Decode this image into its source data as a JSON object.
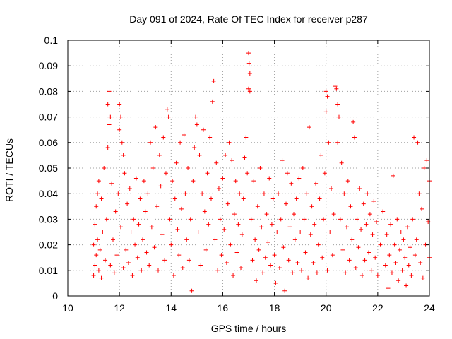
{
  "chart_data": {
    "type": "scatter",
    "title": "Day 091 of 2024, Rate Of TEC Index for receiver p287",
    "xlabel": "GPS time / hours",
    "ylabel": "ROTI / TECUs",
    "xlim": [
      10,
      24
    ],
    "ylim": [
      0,
      0.1
    ],
    "x_ticks": [
      10,
      12,
      14,
      16,
      18,
      20,
      22,
      24
    ],
    "x_tick_labels": [
      "10",
      "12",
      "14",
      "16",
      "18",
      "20",
      "22",
      "24"
    ],
    "y_ticks": [
      0,
      0.01,
      0.02,
      0.03,
      0.04,
      0.05,
      0.06,
      0.07,
      0.08,
      0.09,
      0.1
    ],
    "y_tick_labels": [
      "0",
      "0.01",
      "0.02",
      "0.03",
      "0.04",
      "0.05",
      "0.06",
      "0.07",
      "0.08",
      "0.09",
      "0.1"
    ],
    "grid": true,
    "marker": "+",
    "color": "#ff0000",
    "series": [
      {
        "name": "ROTI",
        "points": [
          [
            11.0,
            0.02
          ],
          [
            11.0,
            0.008
          ],
          [
            11.05,
            0.012
          ],
          [
            11.05,
            0.028
          ],
          [
            11.1,
            0.016
          ],
          [
            11.1,
            0.035
          ],
          [
            11.15,
            0.04
          ],
          [
            11.15,
            0.022
          ],
          [
            11.2,
            0.045
          ],
          [
            11.2,
            0.01
          ],
          [
            11.25,
            0.018
          ],
          [
            11.3,
            0.038
          ],
          [
            11.3,
            0.007
          ],
          [
            11.35,
            0.025
          ],
          [
            11.4,
            0.05
          ],
          [
            11.45,
            0.014
          ],
          [
            11.5,
            0.03
          ],
          [
            11.55,
            0.075
          ],
          [
            11.55,
            0.058
          ],
          [
            11.6,
            0.08
          ],
          [
            11.6,
            0.067
          ],
          [
            11.65,
            0.07
          ],
          [
            11.65,
            0.012
          ],
          [
            11.7,
            0.044
          ],
          [
            11.75,
            0.022
          ],
          [
            11.8,
            0.009
          ],
          [
            11.85,
            0.033
          ],
          [
            11.9,
            0.016
          ],
          [
            11.95,
            0.04
          ],
          [
            12.0,
            0.075
          ],
          [
            12.0,
            0.065
          ],
          [
            12.05,
            0.07
          ],
          [
            12.05,
            0.027
          ],
          [
            12.1,
            0.06
          ],
          [
            12.15,
            0.055
          ],
          [
            12.15,
            0.011
          ],
          [
            12.2,
            0.048
          ],
          [
            12.25,
            0.018
          ],
          [
            12.3,
            0.036
          ],
          [
            12.35,
            0.013
          ],
          [
            12.4,
            0.042
          ],
          [
            12.45,
            0.025
          ],
          [
            12.5,
            0.008
          ],
          [
            12.55,
            0.03
          ],
          [
            12.6,
            0.02
          ],
          [
            12.65,
            0.046
          ],
          [
            12.7,
            0.015
          ],
          [
            12.75,
            0.028
          ],
          [
            12.8,
            0.038
          ],
          [
            12.85,
            0.01
          ],
          [
            12.9,
            0.022
          ],
          [
            12.95,
            0.045
          ],
          [
            13.0,
            0.033
          ],
          [
            13.05,
            0.017
          ],
          [
            13.1,
            0.04
          ],
          [
            13.15,
            0.012
          ],
          [
            13.2,
            0.06
          ],
          [
            13.25,
            0.027
          ],
          [
            13.3,
            0.05
          ],
          [
            13.35,
            0.019
          ],
          [
            13.4,
            0.066
          ],
          [
            13.45,
            0.035
          ],
          [
            13.5,
            0.01
          ],
          [
            13.55,
            0.055
          ],
          [
            13.6,
            0.043
          ],
          [
            13.65,
            0.024
          ],
          [
            13.7,
            0.062
          ],
          [
            13.75,
            0.014
          ],
          [
            13.8,
            0.048
          ],
          [
            13.85,
            0.073
          ],
          [
            13.9,
            0.07
          ],
          [
            13.95,
            0.03
          ],
          [
            14.0,
            0.02
          ],
          [
            14.05,
            0.045
          ],
          [
            14.1,
            0.008
          ],
          [
            14.15,
            0.038
          ],
          [
            14.2,
            0.052
          ],
          [
            14.25,
            0.026
          ],
          [
            14.3,
            0.016
          ],
          [
            14.35,
            0.06
          ],
          [
            14.4,
            0.034
          ],
          [
            14.45,
            0.011
          ],
          [
            14.5,
            0.063
          ],
          [
            14.55,
            0.04
          ],
          [
            14.6,
            0.022
          ],
          [
            14.65,
            0.05
          ],
          [
            14.7,
            0.014
          ],
          [
            14.75,
            0.03
          ],
          [
            14.8,
            0.002
          ],
          [
            14.85,
            0.045
          ],
          [
            14.9,
            0.058
          ],
          [
            14.95,
            0.07
          ],
          [
            15.0,
            0.067
          ],
          [
            15.05,
            0.025
          ],
          [
            15.1,
            0.055
          ],
          [
            15.15,
            0.012
          ],
          [
            15.2,
            0.04
          ],
          [
            15.25,
            0.065
          ],
          [
            15.3,
            0.033
          ],
          [
            15.35,
            0.018
          ],
          [
            15.4,
            0.048
          ],
          [
            15.45,
            0.028
          ],
          [
            15.5,
            0.062
          ],
          [
            15.55,
            0.038
          ],
          [
            15.6,
            0.076
          ],
          [
            15.65,
            0.084
          ],
          [
            15.7,
            0.022
          ],
          [
            15.75,
            0.052
          ],
          [
            15.8,
            0.01
          ],
          [
            15.85,
            0.042
          ],
          [
            15.9,
            0.03
          ],
          [
            15.95,
            0.016
          ],
          [
            16.0,
            0.046
          ],
          [
            16.05,
            0.026
          ],
          [
            16.1,
            0.055
          ],
          [
            16.15,
            0.013
          ],
          [
            16.2,
            0.036
          ],
          [
            16.25,
            0.06
          ],
          [
            16.3,
            0.02
          ],
          [
            16.35,
            0.053
          ],
          [
            16.4,
            0.008
          ],
          [
            16.45,
            0.032
          ],
          [
            16.5,
            0.045
          ],
          [
            16.55,
            0.017
          ],
          [
            16.6,
            0.028
          ],
          [
            16.65,
            0.04
          ],
          [
            16.7,
            0.011
          ],
          [
            16.75,
            0.024
          ],
          [
            16.8,
            0.038
          ],
          [
            16.85,
            0.054
          ],
          [
            16.9,
            0.062
          ],
          [
            16.95,
            0.048
          ],
          [
            17.0,
            0.081
          ],
          [
            17.0,
            0.095
          ],
          [
            17.02,
            0.091
          ],
          [
            17.05,
            0.087
          ],
          [
            17.05,
            0.08
          ],
          [
            17.1,
            0.03
          ],
          [
            17.15,
            0.014
          ],
          [
            17.2,
            0.045
          ],
          [
            17.25,
            0.022
          ],
          [
            17.3,
            0.006
          ],
          [
            17.35,
            0.035
          ],
          [
            17.4,
            0.018
          ],
          [
            17.45,
            0.05
          ],
          [
            17.5,
            0.027
          ],
          [
            17.55,
            0.009
          ],
          [
            17.6,
            0.04
          ],
          [
            17.65,
            0.015
          ],
          [
            17.7,
            0.032
          ],
          [
            17.75,
            0.021
          ],
          [
            17.8,
            0.046
          ],
          [
            17.85,
            0.012
          ],
          [
            17.9,
            0.028
          ],
          [
            17.95,
            0.038
          ],
          [
            18.0,
            0.016
          ],
          [
            18.05,
            0.005
          ],
          [
            18.1,
            0.025
          ],
          [
            18.15,
            0.04
          ],
          [
            18.2,
            0.011
          ],
          [
            18.25,
            0.03
          ],
          [
            18.3,
            0.053
          ],
          [
            18.35,
            0.019
          ],
          [
            18.4,
            0.002
          ],
          [
            18.45,
            0.036
          ],
          [
            18.5,
            0.048
          ],
          [
            18.55,
            0.014
          ],
          [
            18.6,
            0.027
          ],
          [
            18.65,
            0.044
          ],
          [
            18.7,
            0.009
          ],
          [
            18.75,
            0.032
          ],
          [
            18.8,
            0.022
          ],
          [
            18.85,
            0.038
          ],
          [
            18.9,
            0.013
          ],
          [
            18.95,
            0.046
          ],
          [
            19.0,
            0.025
          ],
          [
            19.05,
            0.01
          ],
          [
            19.1,
            0.05
          ],
          [
            19.15,
            0.03
          ],
          [
            19.2,
            0.017
          ],
          [
            19.25,
            0.04
          ],
          [
            19.3,
            0.007
          ],
          [
            19.35,
            0.066
          ],
          [
            19.4,
            0.024
          ],
          [
            19.45,
            0.035
          ],
          [
            19.5,
            0.013
          ],
          [
            19.55,
            0.028
          ],
          [
            19.6,
            0.044
          ],
          [
            19.65,
            0.009
          ],
          [
            19.7,
            0.02
          ],
          [
            19.75,
            0.038
          ],
          [
            19.8,
            0.055
          ],
          [
            19.85,
            0.015
          ],
          [
            19.9,
            0.03
          ],
          [
            19.95,
            0.048
          ],
          [
            20.0,
            0.072
          ],
          [
            20.0,
            0.08
          ],
          [
            20.05,
            0.078
          ],
          [
            20.05,
            0.01
          ],
          [
            20.1,
            0.06
          ],
          [
            20.15,
            0.025
          ],
          [
            20.2,
            0.042
          ],
          [
            20.25,
            0.016
          ],
          [
            20.3,
            0.032
          ],
          [
            20.35,
            0.082
          ],
          [
            20.4,
            0.081
          ],
          [
            20.45,
            0.075
          ],
          [
            20.45,
            0.06
          ],
          [
            20.5,
            0.07
          ],
          [
            20.55,
            0.03
          ],
          [
            20.6,
            0.052
          ],
          [
            20.65,
            0.018
          ],
          [
            20.7,
            0.04
          ],
          [
            20.75,
            0.009
          ],
          [
            20.8,
            0.027
          ],
          [
            20.85,
            0.045
          ],
          [
            20.9,
            0.014
          ],
          [
            20.95,
            0.035
          ],
          [
            21.0,
            0.022
          ],
          [
            21.05,
            0.068
          ],
          [
            21.1,
            0.062
          ],
          [
            21.15,
            0.011
          ],
          [
            21.2,
            0.03
          ],
          [
            21.25,
            0.019
          ],
          [
            21.3,
            0.042
          ],
          [
            21.35,
            0.026
          ],
          [
            21.4,
            0.008
          ],
          [
            21.45,
            0.036
          ],
          [
            21.5,
            0.014
          ],
          [
            21.55,
            0.028
          ],
          [
            21.6,
            0.04
          ],
          [
            21.65,
            0.017
          ],
          [
            21.7,
            0.032
          ],
          [
            21.75,
            0.01
          ],
          [
            21.8,
            0.024
          ],
          [
            21.85,
            0.037
          ],
          [
            21.9,
            0.015
          ],
          [
            21.95,
            0.029
          ],
          [
            22.0,
            0.008
          ],
          [
            22.1,
            0.02
          ],
          [
            22.2,
            0.033
          ],
          [
            22.3,
            0.012
          ],
          [
            22.35,
            0.024
          ],
          [
            22.4,
            0.003
          ],
          [
            22.45,
            0.016
          ],
          [
            22.5,
            0.028
          ],
          [
            22.55,
            0.009
          ],
          [
            22.6,
            0.047
          ],
          [
            22.65,
            0.02
          ],
          [
            22.7,
            0.013
          ],
          [
            22.75,
            0.03
          ],
          [
            22.8,
            0.006
          ],
          [
            22.85,
            0.018
          ],
          [
            22.9,
            0.025
          ],
          [
            22.95,
            0.01
          ],
          [
            23.0,
            0.022
          ],
          [
            23.05,
            0.015
          ],
          [
            23.1,
            0.004
          ],
          [
            23.15,
            0.027
          ],
          [
            23.2,
            0.012
          ],
          [
            23.25,
            0.019
          ],
          [
            23.3,
            0.008
          ],
          [
            23.35,
            0.03
          ],
          [
            23.4,
            0.062
          ],
          [
            23.45,
            0.016
          ],
          [
            23.5,
            0.022
          ],
          [
            23.55,
            0.06
          ],
          [
            23.6,
            0.04
          ],
          [
            23.65,
            0.013
          ],
          [
            23.7,
            0.034
          ],
          [
            23.75,
            0.007
          ],
          [
            23.8,
            0.05
          ],
          [
            23.85,
            0.02
          ],
          [
            23.9,
            0.053
          ],
          [
            23.95,
            0.029
          ],
          [
            24.0,
            0.015
          ],
          [
            24.0,
            0.045
          ]
        ]
      }
    ]
  }
}
